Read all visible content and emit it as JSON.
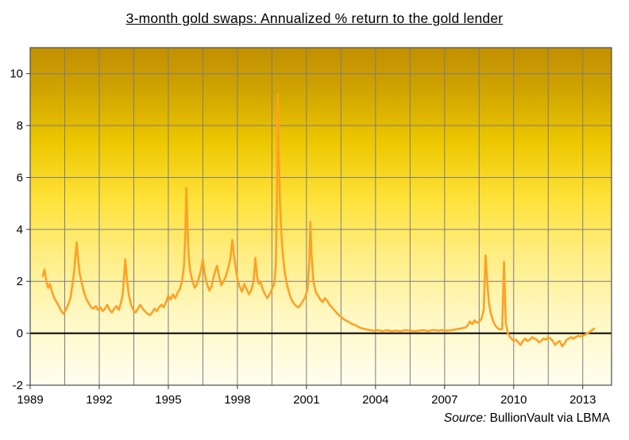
{
  "chart_data": {
    "type": "line",
    "title": "3-month gold swaps: Annualized % return to the gold lender",
    "source_label": "Source:",
    "source_text": "BullionVault via LBMA",
    "xlim": [
      1989,
      2014.25
    ],
    "ylim": [
      -2,
      11
    ],
    "x_ticks": [
      1989,
      1992,
      1995,
      1998,
      2001,
      2004,
      2007,
      2010,
      2013
    ],
    "y_ticks": [
      -2,
      0,
      2,
      4,
      6,
      8,
      10
    ],
    "x_grid_step": 1.5,
    "grid_on": true,
    "legend": "none",
    "grid_color": "#7d7d7d",
    "border_color": "#4d4d4d",
    "line_color": "#FFA125",
    "zero_line_color": "#000000",
    "background_gradient": [
      {
        "offset": "0%",
        "color": "#C19000"
      },
      {
        "offset": "12%",
        "color": "#CFA300"
      },
      {
        "offset": "28%",
        "color": "#EDC700"
      },
      {
        "offset": "45%",
        "color": "#FFE23A"
      },
      {
        "offset": "62%",
        "color": "#FFEE85"
      },
      {
        "offset": "78%",
        "color": "#FFF7BE"
      },
      {
        "offset": "100%",
        "color": "#FFFEF0"
      }
    ],
    "series": [
      {
        "name": "3-month gold swap annualized % return",
        "points": [
          [
            1989.55,
            2.2
          ],
          [
            1989.62,
            2.45
          ],
          [
            1989.7,
            2.0
          ],
          [
            1989.78,
            1.75
          ],
          [
            1989.86,
            1.9
          ],
          [
            1989.95,
            1.6
          ],
          [
            1990.05,
            1.35
          ],
          [
            1990.15,
            1.2
          ],
          [
            1990.25,
            1.05
          ],
          [
            1990.35,
            0.85
          ],
          [
            1990.45,
            0.75
          ],
          [
            1990.55,
            0.9
          ],
          [
            1990.65,
            1.1
          ],
          [
            1990.75,
            1.35
          ],
          [
            1990.82,
            1.8
          ],
          [
            1990.9,
            2.3
          ],
          [
            1990.97,
            3.0
          ],
          [
            1991.02,
            3.5
          ],
          [
            1991.08,
            2.9
          ],
          [
            1991.15,
            2.3
          ],
          [
            1991.25,
            1.9
          ],
          [
            1991.35,
            1.55
          ],
          [
            1991.45,
            1.3
          ],
          [
            1991.55,
            1.15
          ],
          [
            1991.65,
            1.0
          ],
          [
            1991.75,
            0.95
          ],
          [
            1991.85,
            1.05
          ],
          [
            1991.95,
            0.9
          ],
          [
            1992.05,
            1.0
          ],
          [
            1992.15,
            0.85
          ],
          [
            1992.25,
            0.95
          ],
          [
            1992.35,
            1.1
          ],
          [
            1992.45,
            0.9
          ],
          [
            1992.55,
            0.8
          ],
          [
            1992.65,
            0.95
          ],
          [
            1992.75,
            1.05
          ],
          [
            1992.85,
            0.9
          ],
          [
            1992.95,
            1.2
          ],
          [
            1993.02,
            1.5
          ],
          [
            1993.08,
            2.2
          ],
          [
            1993.13,
            2.85
          ],
          [
            1993.2,
            2.1
          ],
          [
            1993.28,
            1.5
          ],
          [
            1993.38,
            1.1
          ],
          [
            1993.48,
            0.9
          ],
          [
            1993.58,
            0.8
          ],
          [
            1993.68,
            0.95
          ],
          [
            1993.78,
            1.1
          ],
          [
            1993.88,
            0.95
          ],
          [
            1993.98,
            0.85
          ],
          [
            1994.1,
            0.75
          ],
          [
            1994.2,
            0.7
          ],
          [
            1994.3,
            0.8
          ],
          [
            1994.4,
            0.95
          ],
          [
            1994.5,
            0.85
          ],
          [
            1994.6,
            1.0
          ],
          [
            1994.7,
            1.1
          ],
          [
            1994.8,
            1.0
          ],
          [
            1994.9,
            1.2
          ],
          [
            1995.0,
            1.45
          ],
          [
            1995.1,
            1.3
          ],
          [
            1995.2,
            1.5
          ],
          [
            1995.3,
            1.35
          ],
          [
            1995.4,
            1.55
          ],
          [
            1995.5,
            1.7
          ],
          [
            1995.6,
            2.0
          ],
          [
            1995.68,
            2.6
          ],
          [
            1995.73,
            3.6
          ],
          [
            1995.78,
            5.6
          ],
          [
            1995.83,
            4.2
          ],
          [
            1995.88,
            3.0
          ],
          [
            1995.95,
            2.4
          ],
          [
            1996.05,
            2.0
          ],
          [
            1996.15,
            1.75
          ],
          [
            1996.25,
            1.9
          ],
          [
            1996.35,
            2.2
          ],
          [
            1996.45,
            2.6
          ],
          [
            1996.5,
            2.85
          ],
          [
            1996.58,
            2.3
          ],
          [
            1996.68,
            1.9
          ],
          [
            1996.78,
            1.65
          ],
          [
            1996.88,
            1.8
          ],
          [
            1996.95,
            2.1
          ],
          [
            1997.05,
            2.45
          ],
          [
            1997.12,
            2.6
          ],
          [
            1997.2,
            2.2
          ],
          [
            1997.3,
            1.85
          ],
          [
            1997.4,
            2.0
          ],
          [
            1997.5,
            2.2
          ],
          [
            1997.6,
            2.5
          ],
          [
            1997.7,
            2.9
          ],
          [
            1997.78,
            3.6
          ],
          [
            1997.85,
            3.0
          ],
          [
            1997.93,
            2.5
          ],
          [
            1998.0,
            2.1
          ],
          [
            1998.1,
            1.8
          ],
          [
            1998.2,
            1.6
          ],
          [
            1998.3,
            1.9
          ],
          [
            1998.4,
            1.7
          ],
          [
            1998.5,
            1.5
          ],
          [
            1998.6,
            1.65
          ],
          [
            1998.7,
            2.0
          ],
          [
            1998.78,
            2.9
          ],
          [
            1998.85,
            2.2
          ],
          [
            1998.93,
            1.9
          ],
          [
            1999.0,
            2.0
          ],
          [
            1999.1,
            1.7
          ],
          [
            1999.2,
            1.5
          ],
          [
            1999.3,
            1.35
          ],
          [
            1999.4,
            1.5
          ],
          [
            1999.5,
            1.7
          ],
          [
            1999.6,
            1.9
          ],
          [
            1999.67,
            2.6
          ],
          [
            1999.72,
            5.5
          ],
          [
            1999.76,
            9.2
          ],
          [
            1999.8,
            7.0
          ],
          [
            1999.85,
            5.0
          ],
          [
            1999.9,
            4.0
          ],
          [
            1999.96,
            3.2
          ],
          [
            2000.05,
            2.4
          ],
          [
            2000.15,
            1.9
          ],
          [
            2000.25,
            1.55
          ],
          [
            2000.35,
            1.3
          ],
          [
            2000.45,
            1.15
          ],
          [
            2000.55,
            1.05
          ],
          [
            2000.65,
            1.0
          ],
          [
            2000.75,
            1.1
          ],
          [
            2000.85,
            1.25
          ],
          [
            2000.95,
            1.4
          ],
          [
            2001.05,
            1.7
          ],
          [
            2001.12,
            2.8
          ],
          [
            2001.17,
            4.3
          ],
          [
            2001.22,
            3.0
          ],
          [
            2001.3,
            2.0
          ],
          [
            2001.4,
            1.6
          ],
          [
            2001.5,
            1.45
          ],
          [
            2001.6,
            1.3
          ],
          [
            2001.7,
            1.2
          ],
          [
            2001.8,
            1.35
          ],
          [
            2001.9,
            1.25
          ],
          [
            2002.0,
            1.1
          ],
          [
            2002.1,
            1.0
          ],
          [
            2002.2,
            0.9
          ],
          [
            2002.3,
            0.8
          ],
          [
            2002.4,
            0.7
          ],
          [
            2002.5,
            0.65
          ],
          [
            2002.6,
            0.55
          ],
          [
            2002.7,
            0.5
          ],
          [
            2002.8,
            0.45
          ],
          [
            2002.9,
            0.4
          ],
          [
            2003.0,
            0.35
          ],
          [
            2003.15,
            0.3
          ],
          [
            2003.3,
            0.22
          ],
          [
            2003.45,
            0.18
          ],
          [
            2003.6,
            0.15
          ],
          [
            2003.75,
            0.12
          ],
          [
            2003.9,
            0.1
          ],
          [
            2004.1,
            0.12
          ],
          [
            2004.3,
            0.08
          ],
          [
            2004.5,
            0.12
          ],
          [
            2004.7,
            0.08
          ],
          [
            2004.9,
            0.1
          ],
          [
            2005.1,
            0.08
          ],
          [
            2005.3,
            0.12
          ],
          [
            2005.5,
            0.1
          ],
          [
            2005.7,
            0.08
          ],
          [
            2005.9,
            0.1
          ],
          [
            2006.1,
            0.12
          ],
          [
            2006.3,
            0.08
          ],
          [
            2006.5,
            0.13
          ],
          [
            2006.7,
            0.1
          ],
          [
            2006.9,
            0.12
          ],
          [
            2007.1,
            0.1
          ],
          [
            2007.3,
            0.12
          ],
          [
            2007.5,
            0.15
          ],
          [
            2007.7,
            0.18
          ],
          [
            2007.9,
            0.22
          ],
          [
            2008.0,
            0.3
          ],
          [
            2008.1,
            0.45
          ],
          [
            2008.2,
            0.35
          ],
          [
            2008.3,
            0.5
          ],
          [
            2008.4,
            0.4
          ],
          [
            2008.5,
            0.45
          ],
          [
            2008.6,
            0.55
          ],
          [
            2008.7,
            0.9
          ],
          [
            2008.78,
            3.0
          ],
          [
            2008.85,
            2.0
          ],
          [
            2008.92,
            1.2
          ],
          [
            2009.0,
            0.8
          ],
          [
            2009.1,
            0.5
          ],
          [
            2009.2,
            0.3
          ],
          [
            2009.3,
            0.2
          ],
          [
            2009.4,
            0.15
          ],
          [
            2009.5,
            0.15
          ],
          [
            2009.58,
            2.75
          ],
          [
            2009.66,
            0.4
          ],
          [
            2009.75,
            0.0
          ],
          [
            2009.85,
            -0.15
          ],
          [
            2010.0,
            -0.3
          ],
          [
            2010.1,
            -0.25
          ],
          [
            2010.2,
            -0.35
          ],
          [
            2010.3,
            -0.45
          ],
          [
            2010.4,
            -0.3
          ],
          [
            2010.5,
            -0.2
          ],
          [
            2010.6,
            -0.3
          ],
          [
            2010.7,
            -0.25
          ],
          [
            2010.8,
            -0.15
          ],
          [
            2010.9,
            -0.2
          ],
          [
            2011.0,
            -0.25
          ],
          [
            2011.1,
            -0.35
          ],
          [
            2011.2,
            -0.3
          ],
          [
            2011.3,
            -0.2
          ],
          [
            2011.4,
            -0.25
          ],
          [
            2011.5,
            -0.15
          ],
          [
            2011.6,
            -0.2
          ],
          [
            2011.7,
            -0.3
          ],
          [
            2011.8,
            -0.45
          ],
          [
            2011.9,
            -0.35
          ],
          [
            2012.0,
            -0.3
          ],
          [
            2012.1,
            -0.5
          ],
          [
            2012.2,
            -0.4
          ],
          [
            2012.3,
            -0.25
          ],
          [
            2012.4,
            -0.2
          ],
          [
            2012.5,
            -0.15
          ],
          [
            2012.6,
            -0.2
          ],
          [
            2012.7,
            -0.15
          ],
          [
            2012.8,
            -0.1
          ],
          [
            2012.9,
            -0.12
          ],
          [
            2013.0,
            -0.1
          ],
          [
            2013.1,
            -0.05
          ],
          [
            2013.2,
            0.0
          ],
          [
            2013.3,
            0.05
          ],
          [
            2013.4,
            0.12
          ],
          [
            2013.5,
            0.18
          ]
        ]
      }
    ]
  }
}
